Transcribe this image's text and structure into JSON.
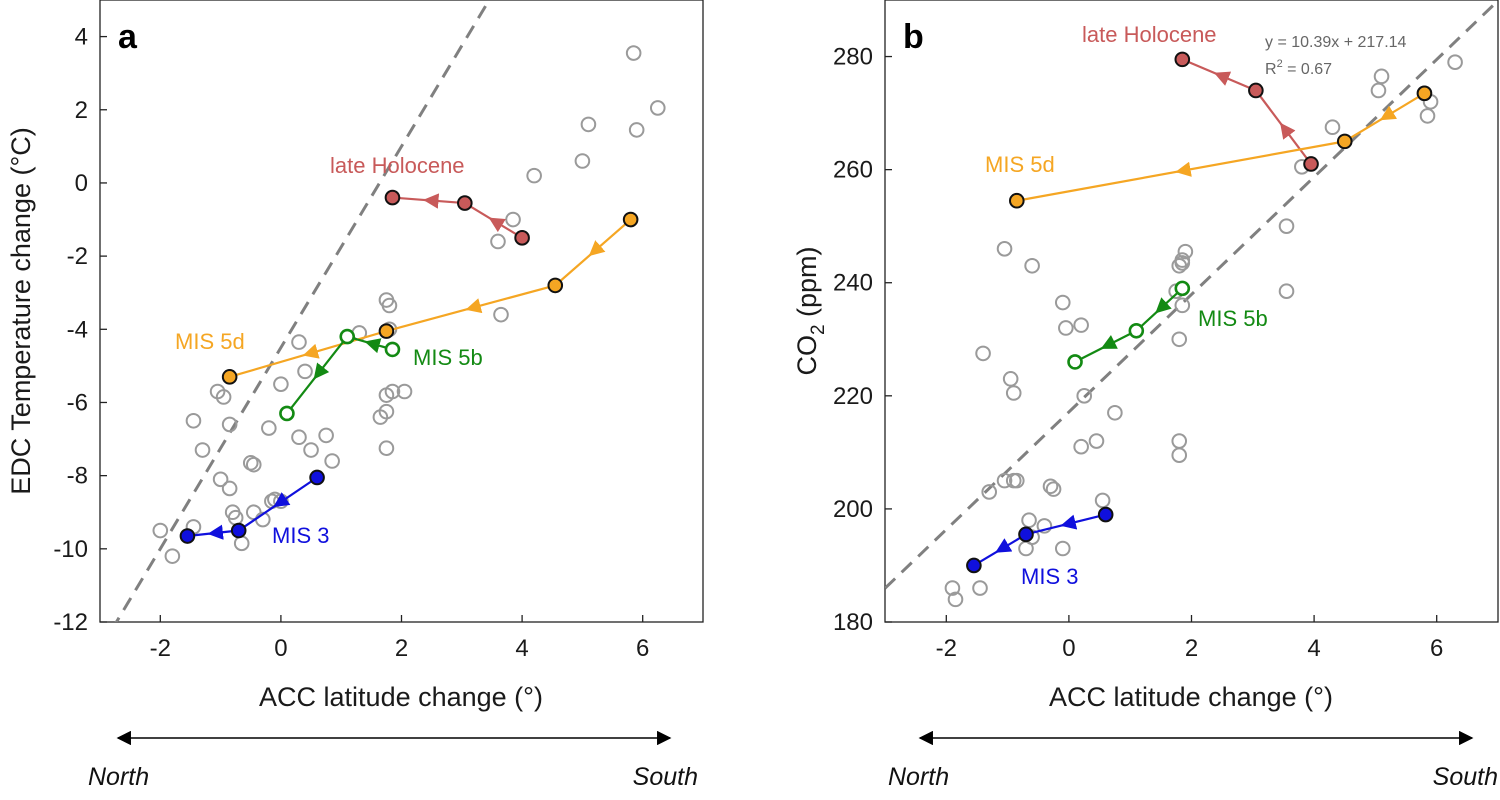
{
  "chart_data": [
    {
      "type": "scatter",
      "panel_letter": "a",
      "xlabel": "ACC latitude change (°)",
      "ylabel": "EDC Temperature change (°C)",
      "xlim": [
        -3,
        7
      ],
      "ylim": [
        -12,
        5
      ],
      "xticks": [
        -2,
        0,
        2,
        4,
        6
      ],
      "yticks": [
        -12,
        -10,
        -8,
        -6,
        -4,
        -2,
        0,
        2,
        4
      ],
      "grid": false,
      "colors": {
        "background": "#888888",
        "late_holocene": "#c85a5a",
        "mis5d": "#f5a623",
        "mis5b": "#138a13",
        "mis3": "#1010dd",
        "fit_line": "#808080"
      },
      "regression_line": {
        "slope": 2.75,
        "intercept": -4.5
      },
      "background_points": [
        [
          -2,
          -9.5
        ],
        [
          -1.8,
          -10.2
        ],
        [
          -1.45,
          -9.4
        ],
        [
          -1.45,
          -6.5
        ],
        [
          -1.3,
          -7.3
        ],
        [
          -1.05,
          -5.7
        ],
        [
          -1.0,
          -8.1
        ],
        [
          -0.95,
          -5.85
        ],
        [
          -0.85,
          -6.6
        ],
        [
          -0.85,
          -8.35
        ],
        [
          -0.8,
          -9.0
        ],
        [
          -0.75,
          -9.15
        ],
        [
          -0.65,
          -9.85
        ],
        [
          -0.5,
          -7.65
        ],
        [
          -0.45,
          -7.7
        ],
        [
          -0.45,
          -9.0
        ],
        [
          -0.3,
          -9.2
        ],
        [
          -0.15,
          -8.7
        ],
        [
          -0.1,
          -8.65
        ],
        [
          0.0,
          -8.7
        ],
        [
          -0.2,
          -6.7
        ],
        [
          0.0,
          -5.5
        ],
        [
          0.3,
          -4.35
        ],
        [
          0.4,
          -5.15
        ],
        [
          0.3,
          -6.95
        ],
        [
          0.5,
          -7.3
        ],
        [
          0.75,
          -6.9
        ],
        [
          0.85,
          -7.6
        ],
        [
          1.3,
          -4.1
        ],
        [
          1.75,
          -3.2
        ],
        [
          1.8,
          -3.35
        ],
        [
          1.8,
          -4.0
        ],
        [
          1.75,
          -5.8
        ],
        [
          1.75,
          -7.25
        ],
        [
          1.65,
          -6.4
        ],
        [
          1.75,
          -6.25
        ],
        [
          1.85,
          -5.7
        ],
        [
          2.05,
          -5.7
        ],
        [
          3.6,
          -1.6
        ],
        [
          3.85,
          -1.0
        ],
        [
          4.2,
          0.2
        ],
        [
          3.65,
          -3.6
        ],
        [
          5.0,
          0.6
        ],
        [
          5.1,
          1.6
        ],
        [
          5.85,
          3.55
        ],
        [
          5.9,
          1.45
        ],
        [
          6.25,
          2.05
        ]
      ],
      "series": [
        {
          "name": "late Holocene",
          "points": [
            [
              4.0,
              -1.5
            ],
            [
              3.05,
              -0.55
            ],
            [
              1.85,
              -0.4
            ]
          ]
        },
        {
          "name": "MIS 5d",
          "points": [
            [
              5.8,
              -1.0
            ],
            [
              4.55,
              -2.8
            ],
            [
              1.75,
              -4.05
            ],
            [
              -0.85,
              -5.3
            ]
          ]
        },
        {
          "name": "MIS 5b",
          "points": [
            [
              1.85,
              -4.55
            ],
            [
              1.1,
              -4.2
            ],
            [
              0.1,
              -6.3
            ]
          ]
        },
        {
          "name": "MIS 3",
          "points": [
            [
              0.6,
              -8.05
            ],
            [
              -0.7,
              -9.5
            ],
            [
              -1.55,
              -9.65
            ]
          ]
        }
      ],
      "direction_labels": {
        "left": "North",
        "right": "South"
      }
    },
    {
      "type": "scatter",
      "panel_letter": "b",
      "xlabel": "ACC latitude change (°)",
      "ylabel_main": "CO",
      "ylabel_sub": "2",
      "ylabel_rest": " (ppm)",
      "xlim": [
        -3,
        7
      ],
      "ylim": [
        180,
        290
      ],
      "xticks": [
        -2,
        0,
        2,
        4,
        6
      ],
      "yticks": [
        180,
        200,
        220,
        240,
        260,
        280
      ],
      "grid": false,
      "regression_line": {
        "slope": 10.39,
        "intercept": 217.14
      },
      "regression_eq": "y = 10.39x + 217.14",
      "r2_main": "R",
      "r2_sup": "2",
      "r2_rest": " = 0.67",
      "background_points": [
        [
          -1.9,
          186
        ],
        [
          -1.85,
          184
        ],
        [
          -1.45,
          186
        ],
        [
          -1.3,
          203
        ],
        [
          -1.05,
          205
        ],
        [
          -0.9,
          205
        ],
        [
          -0.85,
          205
        ],
        [
          -0.7,
          193
        ],
        [
          -0.65,
          198
        ],
        [
          -0.6,
          195
        ],
        [
          -0.4,
          197
        ],
        [
          -0.3,
          204
        ],
        [
          -0.25,
          203.5
        ],
        [
          -0.1,
          193
        ],
        [
          0.25,
          220
        ],
        [
          0.2,
          211
        ],
        [
          0.45,
          212
        ],
        [
          0.55,
          201.5
        ],
        [
          0.75,
          217
        ],
        [
          0.2,
          232.5
        ],
        [
          -0.1,
          236.5
        ],
        [
          -0.05,
          232
        ],
        [
          -0.6,
          243
        ],
        [
          -1.05,
          246
        ],
        [
          -0.95,
          223
        ],
        [
          -0.9,
          220.5
        ],
        [
          -1.4,
          227.5
        ],
        [
          1.75,
          238.5
        ],
        [
          1.8,
          243
        ],
        [
          1.85,
          244
        ],
        [
          1.85,
          243.5
        ],
        [
          1.9,
          245.5
        ],
        [
          1.85,
          236
        ],
        [
          1.8,
          230
        ],
        [
          1.8,
          212
        ],
        [
          1.8,
          209.5
        ],
        [
          3.55,
          250
        ],
        [
          3.55,
          238.5
        ],
        [
          3.8,
          260.5
        ],
        [
          4.3,
          267.5
        ],
        [
          5.05,
          274
        ],
        [
          5.1,
          276.5
        ],
        [
          5.8,
          273.5
        ],
        [
          5.9,
          272
        ],
        [
          5.85,
          269.5
        ],
        [
          6.3,
          279
        ]
      ],
      "series": [
        {
          "name": "late Holocene",
          "points": [
            [
              3.95,
              261
            ],
            [
              3.05,
              274
            ],
            [
              1.85,
              279.5
            ]
          ]
        },
        {
          "name": "MIS 5d",
          "points": [
            [
              5.8,
              273.5
            ],
            [
              4.5,
              265
            ],
            [
              -0.85,
              254.5
            ]
          ]
        },
        {
          "name": "MIS 5b",
          "points": [
            [
              1.85,
              239
            ],
            [
              1.1,
              231.5
            ],
            [
              0.1,
              226
            ]
          ]
        },
        {
          "name": "MIS 3",
          "points": [
            [
              0.6,
              199
            ],
            [
              -0.7,
              195.5
            ],
            [
              -1.55,
              190
            ]
          ]
        }
      ],
      "direction_labels": {
        "left": "North",
        "right": "South"
      }
    }
  ]
}
